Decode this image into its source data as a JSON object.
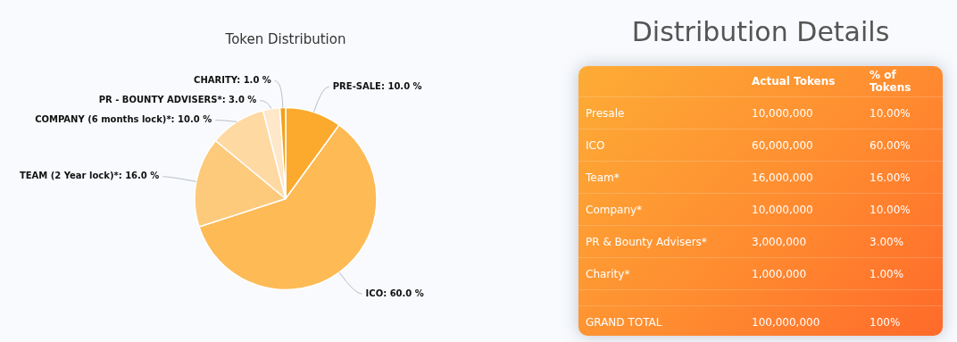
{
  "chart_data": [
    {
      "type": "pie",
      "title": "Token Distribution",
      "categories": [
        "PRE-SALE",
        "ICO",
        "TEAM (2 Year lock)*",
        "COMPANY (6 months lock)*",
        "PR - BOUNTY ADVISERS*",
        "CHARITY"
      ],
      "values": [
        10,
        60,
        16,
        10,
        3,
        1
      ],
      "value_labels": [
        "10.0 %",
        "60.0 %",
        "16.0 %",
        "10.0 %",
        "3.0 %",
        "1.0 %"
      ],
      "colors": [
        "#fbaa2e",
        "#fdba55",
        "#fdca7c",
        "#fed9a2",
        "#fee8c9",
        "#f5a019"
      ]
    },
    {
      "type": "other",
      "title": "Distribution Details",
      "categories": [
        null,
        "Actual Tokens",
        "% of Tokens"
      ],
      "y_categories": [
        "Presale",
        "ICO",
        "Team*",
        "Company*",
        "PR & Bounty Advisers*",
        "Charity*",
        null,
        "GRAND TOTAL"
      ],
      "cell_labels": [
        [
          "10,000,000",
          "10.00%"
        ],
        [
          "60,000,000",
          "60.00%"
        ],
        [
          "16,000,000",
          "16.00%"
        ],
        [
          "10,000,000",
          "10.00%"
        ],
        [
          "3,000,000",
          "3.00%"
        ],
        [
          "1,000,000",
          "1.00%"
        ],
        [
          null,
          null
        ],
        [
          "100,000,000",
          "100%"
        ]
      ]
    }
  ]
}
